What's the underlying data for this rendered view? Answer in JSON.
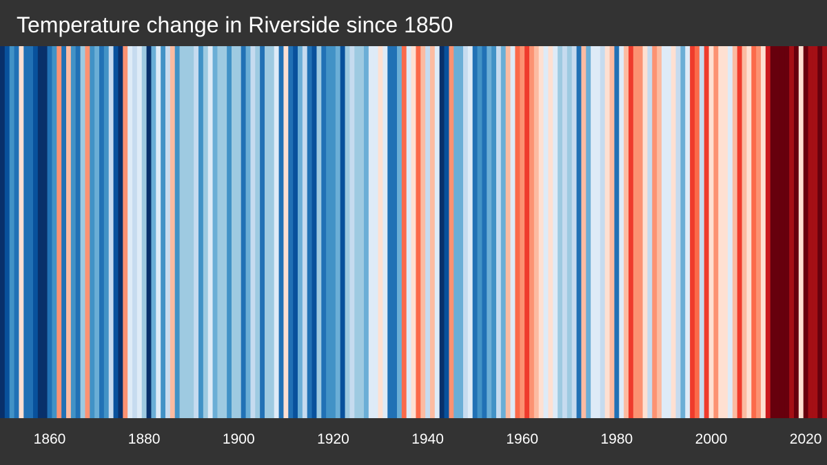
{
  "title": "Temperature change in Riverside since 1850",
  "colors": {
    "background": "#333333",
    "text": "#ffffff"
  },
  "chart_data": {
    "type": "heatmap",
    "title": "Temperature change in Riverside since 1850",
    "xlabel": "",
    "ylabel": "",
    "x_start": 1850,
    "x_end": 2024,
    "tick_labels": [
      "1860",
      "1880",
      "1900",
      "1920",
      "1940",
      "1960",
      "1980",
      "2000",
      "2020"
    ],
    "tick_years": [
      1860,
      1880,
      1900,
      1920,
      1940,
      1960,
      1980,
      2000,
      2020
    ],
    "color_scale": [
      "#08306b",
      "#08519c",
      "#2171b5",
      "#4292c6",
      "#6baed6",
      "#9ecae1",
      "#c6dbef",
      "#deebf7",
      "#fee0d2",
      "#fcbba1",
      "#fc9272",
      "#fb6a4a",
      "#ef3b2c",
      "#cb181d",
      "#a50f15",
      "#67000d"
    ],
    "years": [
      1850,
      1851,
      1852,
      1853,
      1854,
      1855,
      1856,
      1857,
      1858,
      1859,
      1860,
      1861,
      1862,
      1863,
      1864,
      1865,
      1866,
      1867,
      1868,
      1869,
      1870,
      1871,
      1872,
      1873,
      1874,
      1875,
      1876,
      1877,
      1878,
      1879,
      1880,
      1881,
      1882,
      1883,
      1884,
      1885,
      1886,
      1887,
      1888,
      1889,
      1890,
      1891,
      1892,
      1893,
      1894,
      1895,
      1896,
      1897,
      1898,
      1899,
      1900,
      1901,
      1902,
      1903,
      1904,
      1905,
      1906,
      1907,
      1908,
      1909,
      1910,
      1911,
      1912,
      1913,
      1914,
      1915,
      1916,
      1917,
      1918,
      1919,
      1920,
      1921,
      1922,
      1923,
      1924,
      1925,
      1926,
      1927,
      1928,
      1929,
      1930,
      1931,
      1932,
      1933,
      1934,
      1935,
      1936,
      1937,
      1938,
      1939,
      1940,
      1941,
      1942,
      1943,
      1944,
      1945,
      1946,
      1947,
      1948,
      1949,
      1950,
      1951,
      1952,
      1953,
      1954,
      1955,
      1956,
      1957,
      1958,
      1959,
      1960,
      1961,
      1962,
      1963,
      1964,
      1965,
      1966,
      1967,
      1968,
      1969,
      1970,
      1971,
      1972,
      1973,
      1974,
      1975,
      1976,
      1977,
      1978,
      1979,
      1980,
      1981,
      1982,
      1983,
      1984,
      1985,
      1986,
      1987,
      1988,
      1989,
      1990,
      1991,
      1992,
      1993,
      1994,
      1995,
      1996,
      1997,
      1998,
      1999,
      2000,
      2001,
      2002,
      2003,
      2004,
      2005,
      2006,
      2007,
      2008,
      2009,
      2010,
      2011,
      2012,
      2013,
      2014,
      2015,
      2016,
      2017,
      2018,
      2019,
      2020,
      2021,
      2022,
      2023,
      2024
    ],
    "anomaly_level": [
      0,
      1,
      3,
      2,
      8,
      2,
      2,
      1,
      0,
      0,
      2,
      3,
      10,
      2,
      9,
      3,
      2,
      5,
      10,
      3,
      4,
      2,
      3,
      6,
      1,
      0,
      10,
      7,
      6,
      7,
      5,
      0,
      4,
      7,
      3,
      6,
      9,
      3,
      5,
      5,
      5,
      6,
      3,
      5,
      7,
      4,
      5,
      5,
      3,
      5,
      5,
      2,
      4,
      6,
      5,
      2,
      5,
      5,
      7,
      2,
      8,
      2,
      1,
      4,
      6,
      2,
      1,
      5,
      2,
      3,
      3,
      4,
      1,
      5,
      6,
      5,
      5,
      4,
      7,
      7,
      8,
      7,
      2,
      2,
      4,
      11,
      7,
      8,
      11,
      9,
      6,
      9,
      7,
      0,
      1,
      10,
      4,
      4,
      6,
      7,
      2,
      3,
      2,
      4,
      3,
      6,
      4,
      9,
      7,
      11,
      10,
      12,
      10,
      9,
      8,
      7,
      8,
      7,
      5,
      6,
      5,
      6,
      2,
      9,
      4,
      7,
      7,
      6,
      8,
      9,
      2,
      7,
      9,
      12,
      10,
      10,
      8,
      6,
      10,
      9,
      7,
      7,
      8,
      6,
      4,
      7,
      12,
      11,
      6,
      12,
      8,
      10,
      8,
      8,
      7,
      9,
      12,
      9,
      8,
      11,
      10,
      8,
      13,
      15,
      15,
      15,
      15,
      14,
      15,
      8,
      15,
      14,
      14,
      15,
      14
    ]
  }
}
